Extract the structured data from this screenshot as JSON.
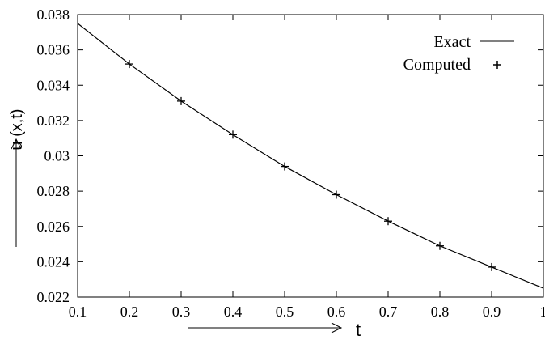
{
  "chart_data": {
    "type": "line",
    "title": "",
    "xlabel": "t",
    "ylabel": "u (x,t)",
    "xlim": [
      0.1,
      1.0
    ],
    "ylim": [
      0.022,
      0.038
    ],
    "x_ticks": [
      "0.1",
      "0.2",
      "0.3",
      "0.4",
      "0.5",
      "0.6",
      "0.7",
      "0.8",
      "0.9",
      "1"
    ],
    "y_ticks": [
      "0.022",
      "0.024",
      "0.026",
      "0.028",
      "0.03",
      "0.032",
      "0.034",
      "0.036",
      "0.038"
    ],
    "grid": false,
    "legend_position": "top-right",
    "series": [
      {
        "name": "Exact",
        "style": "line",
        "x": [
          0.1,
          0.2,
          0.3,
          0.4,
          0.5,
          0.6,
          0.7,
          0.8,
          0.9,
          1.0
        ],
        "values": [
          0.0375,
          0.0352,
          0.0331,
          0.0312,
          0.0294,
          0.0278,
          0.0263,
          0.0249,
          0.0237,
          0.0225
        ]
      },
      {
        "name": "Computed",
        "style": "plus",
        "x": [
          0.2,
          0.3,
          0.4,
          0.5,
          0.6,
          0.7,
          0.8,
          0.9
        ],
        "values": [
          0.0352,
          0.0331,
          0.0312,
          0.0294,
          0.0278,
          0.0263,
          0.0249,
          0.0237
        ]
      }
    ]
  }
}
